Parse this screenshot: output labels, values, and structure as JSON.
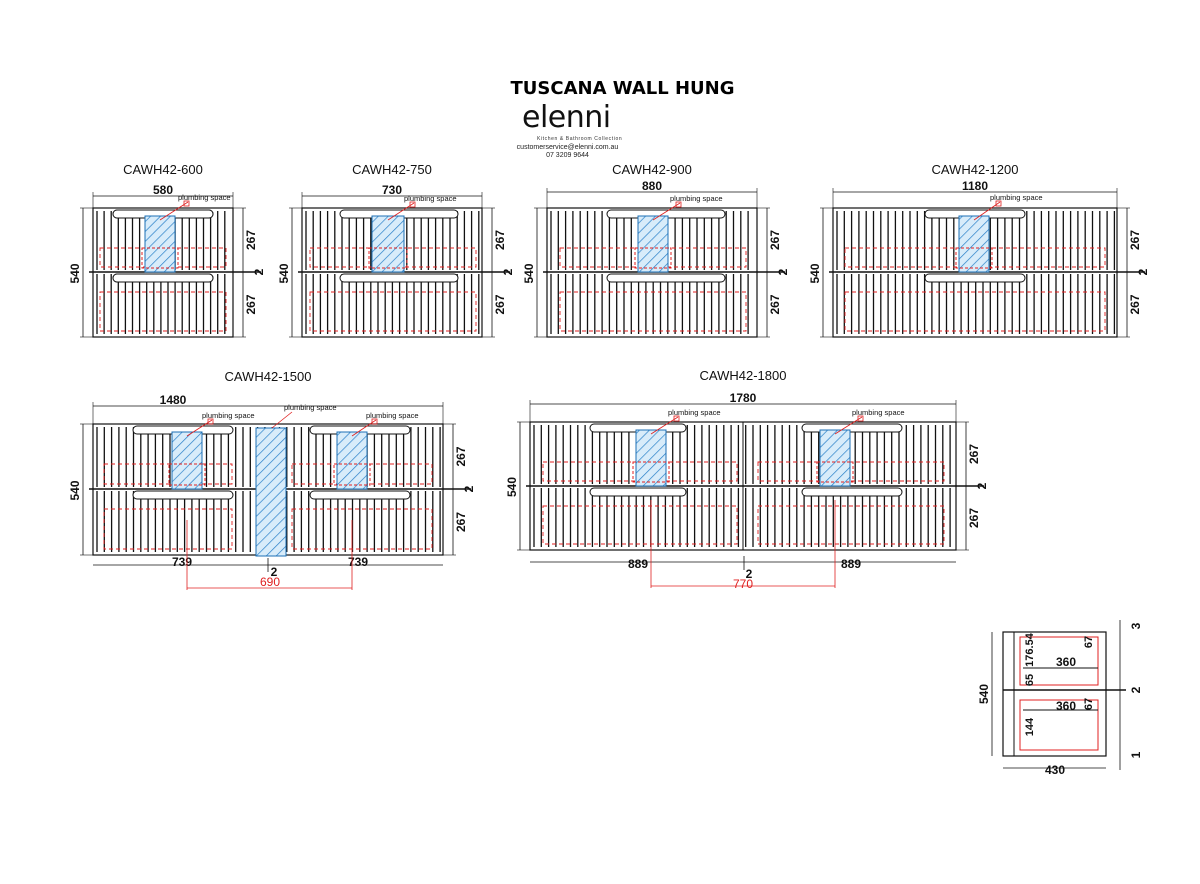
{
  "header": {
    "title": "TUSCANA WALL HUNG",
    "brand": "elenni",
    "tagline": "Kitchen & Bathroom Collection",
    "email": "customerservice@elenni.com.au",
    "phone": "07 3209 9644"
  },
  "annotation_labels": {
    "plumbing": "plumbing space",
    "height_total": "540",
    "height_half": "267",
    "gap": "2"
  },
  "models": [
    {
      "name": "CAWH42-600",
      "width": "580"
    },
    {
      "name": "CAWH42-750",
      "width": "730"
    },
    {
      "name": "CAWH42-900",
      "width": "880"
    },
    {
      "name": "CAWH42-1200",
      "width": "1180"
    },
    {
      "name": "CAWH42-1500",
      "width": "1480",
      "left_part": "739",
      "right_part": "739",
      "mid_gap": "2",
      "plumbing_span": "690"
    },
    {
      "name": "CAWH42-1800",
      "width": "1780",
      "left_part": "889",
      "right_part": "889",
      "mid_gap": "2",
      "plumbing_span": "770"
    }
  ],
  "side_view": {
    "height": "540",
    "depth": "430",
    "drawer_depth_top": "360",
    "drawer_depth_bottom": "360",
    "top_offset": "3",
    "mid_gap": "2",
    "bottom_offset": "1",
    "dim_176": "176.54",
    "dim_65": "65",
    "dim_144": "144",
    "dim_67_top": "67",
    "dim_67_bottom": "67"
  },
  "colors": {
    "line": "#111111",
    "plumbing_fill": "#3a9ad9",
    "red_dashed": "#e02020",
    "pointer": "#e02020"
  }
}
